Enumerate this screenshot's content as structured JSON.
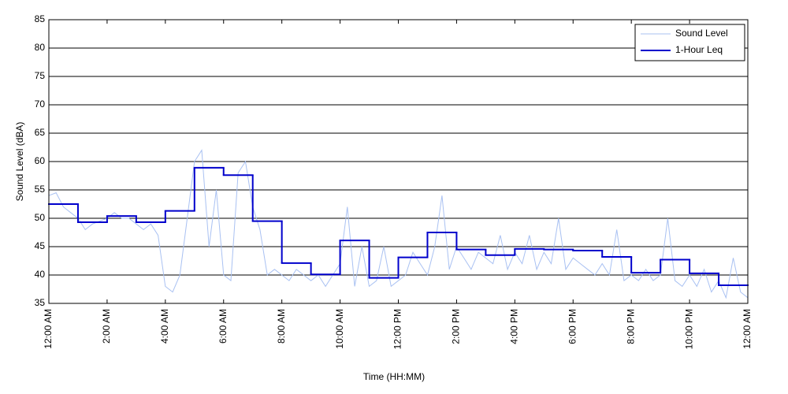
{
  "chart_data": {
    "type": "line",
    "xlabel": "Time (HH:MM)",
    "ylabel": "Sound Level (dBA)",
    "xlim": [
      0,
      24
    ],
    "xticks": [
      {
        "value": 0,
        "label": "12:00 AM"
      },
      {
        "value": 2,
        "label": "2:00 AM"
      },
      {
        "value": 4,
        "label": "4:00 AM"
      },
      {
        "value": 6,
        "label": "6:00 AM"
      },
      {
        "value": 8,
        "label": "8:00 AM"
      },
      {
        "value": 10,
        "label": "10:00 AM"
      },
      {
        "value": 12,
        "label": "12:00 PM"
      },
      {
        "value": 14,
        "label": "2:00 PM"
      },
      {
        "value": 16,
        "label": "4:00 PM"
      },
      {
        "value": 18,
        "label": "6:00 PM"
      },
      {
        "value": 20,
        "label": "8:00 PM"
      },
      {
        "value": 22,
        "label": "10:00 PM"
      },
      {
        "value": 24,
        "label": "12:00 AM"
      }
    ],
    "ylim": [
      35,
      85
    ],
    "yticks": [
      35,
      40,
      45,
      50,
      55,
      60,
      65,
      70,
      75,
      80,
      85
    ],
    "grid": true,
    "legend": "upper right",
    "series": [
      {
        "name": "Sound Level",
        "color": "#a9c1f2",
        "drawstyle": "default",
        "x": [
          0,
          0.25,
          0.5,
          0.75,
          1,
          1.25,
          1.5,
          1.75,
          2,
          2.25,
          2.5,
          2.75,
          3,
          3.25,
          3.5,
          3.75,
          4,
          4.25,
          4.5,
          4.75,
          5,
          5.25,
          5.5,
          5.75,
          6,
          6.25,
          6.5,
          6.75,
          7,
          7.25,
          7.5,
          7.75,
          8,
          8.25,
          8.5,
          8.75,
          9,
          9.25,
          9.5,
          9.75,
          10,
          10.25,
          10.5,
          10.75,
          11,
          11.25,
          11.5,
          11.75,
          12,
          12.25,
          12.5,
          12.75,
          13,
          13.25,
          13.5,
          13.75,
          14,
          14.25,
          14.5,
          14.75,
          15,
          15.25,
          15.5,
          15.75,
          16,
          16.25,
          16.5,
          16.75,
          17,
          17.25,
          17.5,
          17.75,
          18,
          18.25,
          18.5,
          18.75,
          19,
          19.25,
          19.5,
          19.75,
          20,
          20.25,
          20.5,
          20.75,
          21,
          21.25,
          21.5,
          21.75,
          22,
          22.25,
          22.5,
          22.75,
          23,
          23.25,
          23.5,
          23.75,
          24
        ],
        "values": [
          54,
          54.5,
          52,
          51,
          50,
          48,
          49,
          49.5,
          50,
          51,
          50,
          50,
          49,
          48,
          49,
          47,
          38,
          37,
          40,
          50,
          60,
          62,
          45,
          55,
          40,
          39,
          58,
          60,
          52,
          48,
          40,
          41,
          40,
          39,
          41,
          40,
          39,
          40,
          38,
          40,
          42,
          52,
          38,
          45,
          38,
          39,
          45,
          38,
          39,
          40,
          44,
          42,
          40,
          45,
          54,
          41,
          45,
          43,
          41,
          44,
          43,
          42,
          47,
          41,
          44,
          42,
          47,
          41,
          44,
          42,
          50,
          41,
          43,
          42,
          41,
          40,
          42,
          40,
          48,
          39,
          40,
          39,
          41,
          39,
          40,
          50,
          39,
          38,
          40,
          38,
          41,
          37,
          39,
          36,
          43,
          37,
          36
        ]
      },
      {
        "name": "1-Hour Leq",
        "color": "#0000cc",
        "drawstyle": "steps-post",
        "x": [
          0,
          1,
          2,
          3,
          4,
          5,
          6,
          7,
          8,
          9,
          10,
          11,
          12,
          13,
          14,
          15,
          16,
          17,
          18,
          19,
          20,
          21,
          22,
          23
        ],
        "values": [
          52.5,
          49.3,
          50.4,
          49.3,
          51.3,
          58.9,
          57.6,
          49.5,
          42.1,
          40.1,
          46.1,
          39.5,
          43.1,
          47.5,
          44.5,
          43.5,
          44.6,
          44.5,
          44.3,
          43.2,
          40.4,
          42.7,
          40.3,
          38.2
        ]
      }
    ]
  }
}
